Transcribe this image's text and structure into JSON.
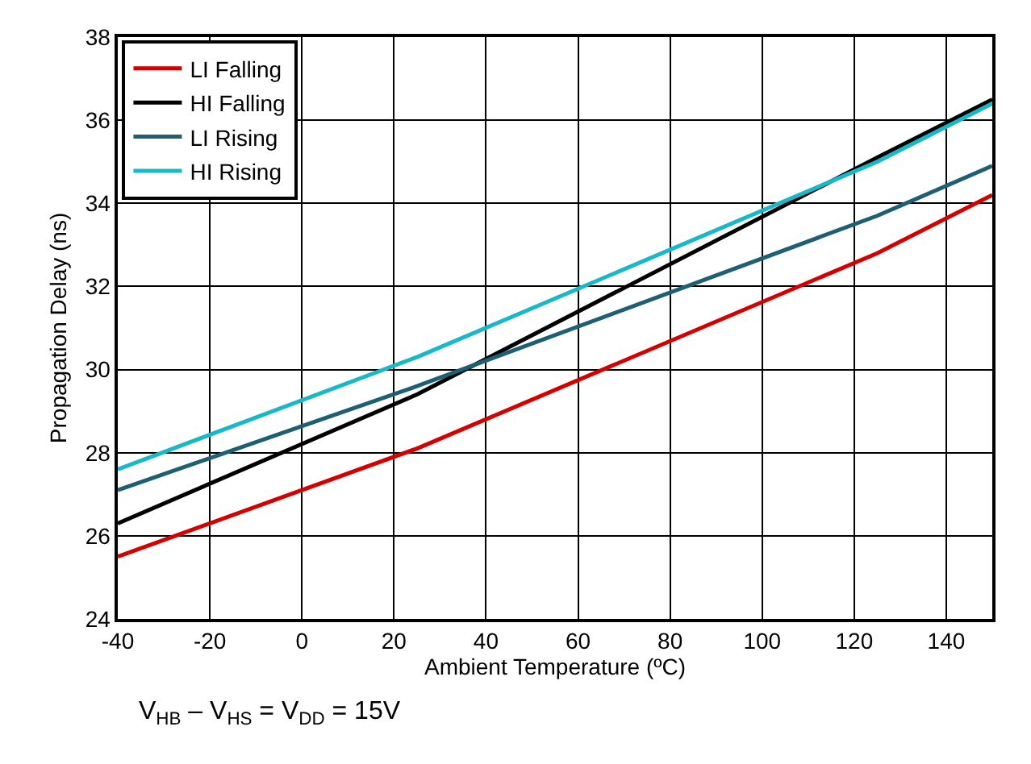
{
  "chart_data": {
    "type": "line",
    "xlabel": "Ambient Temperature (ºC)",
    "ylabel": "Propagation Delay (ns)",
    "xlim": [
      -40,
      150
    ],
    "xticks": [
      -40,
      -20,
      0,
      20,
      40,
      60,
      80,
      100,
      120,
      140
    ],
    "ylim": [
      24,
      38
    ],
    "yticks": [
      24,
      26,
      28,
      30,
      32,
      34,
      36,
      38
    ],
    "grid": true,
    "legend": "top left",
    "line_style": "solid",
    "annotations": [
      "V$_{HB}$ – V$_{HS}$ = V$_{DD}$ = 15V"
    ],
    "series": [
      {
        "name": "LI Falling",
        "color": "#d40000",
        "x": [
          -40,
          25,
          125,
          150
        ],
        "values": [
          25.5,
          28.1,
          32.8,
          34.2
        ]
      },
      {
        "name": "HI Falling",
        "color": "#000000",
        "x": [
          -40,
          25,
          125,
          150
        ],
        "values": [
          26.3,
          29.4,
          35.1,
          36.5
        ]
      },
      {
        "name": "LI Rising",
        "color": "#1f5f73",
        "x": [
          -40,
          25,
          125,
          150
        ],
        "values": [
          27.1,
          29.6,
          33.7,
          34.9
        ]
      },
      {
        "name": "HI Rising",
        "color": "#19b8c8",
        "x": [
          -40,
          25,
          125,
          150
        ],
        "values": [
          27.6,
          30.3,
          35.0,
          36.4
        ]
      }
    ]
  }
}
